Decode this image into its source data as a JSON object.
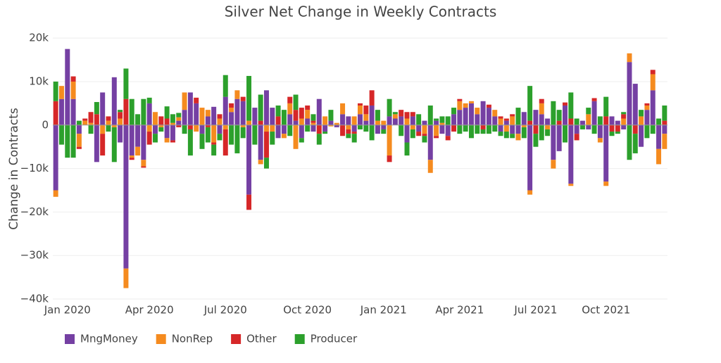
{
  "chart_data": {
    "type": "bar",
    "barmode": "relative",
    "title": "Silver Net Change in Weekly Contracts",
    "y_label": "Change in Contracts",
    "categories": [
      null,
      null,
      "Jan 2020",
      null,
      null,
      null,
      null,
      null,
      null,
      null,
      null,
      null,
      null,
      null,
      null,
      null,
      "Apr 2020",
      null,
      null,
      null,
      null,
      null,
      null,
      null,
      null,
      null,
      null,
      null,
      null,
      "Jul 2020",
      null,
      null,
      null,
      null,
      null,
      null,
      null,
      null,
      null,
      null,
      null,
      null,
      null,
      "Oct 2020",
      null,
      null,
      null,
      null,
      null,
      null,
      null,
      null,
      null,
      null,
      null,
      null,
      "Jan 2021",
      null,
      null,
      null,
      null,
      null,
      null,
      null,
      null,
      null,
      null,
      null,
      null,
      "Apr 2021",
      null,
      null,
      null,
      null,
      null,
      null,
      null,
      null,
      null,
      null,
      null,
      null,
      "Jul 2021",
      null,
      null,
      null,
      null,
      null,
      null,
      null,
      null,
      null,
      null,
      null,
      "Oct 2021",
      null,
      null,
      null,
      null,
      null,
      null,
      null,
      null,
      null,
      null
    ],
    "series": [
      {
        "name": "MngMoney",
        "color": "#7540a3",
        "values": [
          -15000,
          6000,
          17500,
          6000,
          -2000,
          0,
          0,
          -8500,
          7500,
          0,
          11000,
          -4000,
          -33000,
          -7000,
          -5000,
          -8000,
          5000,
          -2000,
          0,
          -3000,
          -3500,
          1000,
          3500,
          7500,
          5000,
          -2000,
          2000,
          4200,
          -2000,
          6500,
          3000,
          6000,
          5500,
          -16000,
          4000,
          -8000,
          8000,
          4000,
          -3000,
          -2000,
          2500,
          1000,
          -3000,
          1500,
          -1500,
          6000,
          -1500,
          1000,
          -500,
          2500,
          2000,
          -1500,
          2500,
          1000,
          4500,
          -2000,
          -1000,
          2000,
          1500,
          2000,
          -4000,
          2000,
          -1500,
          1000,
          -8000,
          1000,
          -2000,
          -2500,
          2500,
          3500,
          4000,
          5000,
          2500,
          5500,
          4000,
          2000,
          -1500,
          1000,
          -2000,
          -2000,
          3000,
          -15000,
          3500,
          2500,
          1500,
          -8000,
          -6000,
          4500,
          -13500,
          -2000,
          1000,
          -1000,
          5500,
          -3000,
          -13000,
          2000,
          1000,
          -1000,
          14500,
          9500,
          -5000,
          3500,
          8000,
          -5500,
          -2000
        ]
      },
      {
        "name": "NonRep",
        "color": "#f58b1f",
        "values": [
          -1500,
          3000,
          0,
          4000,
          -3000,
          1000,
          500,
          0,
          -2000,
          1000,
          -500,
          1500,
          -4500,
          -500,
          -2000,
          -1500,
          -1500,
          3000,
          -500,
          -1000,
          500,
          800,
          4000,
          0,
          -1500,
          4000,
          1500,
          -4000,
          1500,
          -1000,
          1000,
          2000,
          -500,
          1000,
          0,
          -1000,
          -1500,
          -1500,
          0,
          -1000,
          2500,
          -5500,
          1500,
          2000,
          500,
          0,
          2000,
          -300,
          500,
          2500,
          -1000,
          2000,
          2000,
          1500,
          0,
          1000,
          1000,
          -7000,
          1000,
          0,
          1500,
          -1000,
          0,
          -2000,
          -3000,
          -2500,
          500,
          0,
          0,
          2000,
          1000,
          500,
          1500,
          0,
          0,
          1500,
          1500,
          -1500,
          2000,
          -1500,
          -500,
          -1000,
          0,
          2500,
          -1000,
          -2000,
          0,
          0,
          -500,
          0,
          0,
          2500,
          0,
          -1000,
          -1000,
          0,
          0,
          1500,
          2000,
          0,
          2000,
          1000,
          3700,
          -3500,
          -3500
        ]
      },
      {
        "name": "Other",
        "color": "#d62728",
        "values": [
          5500,
          0,
          0,
          1200,
          -500,
          500,
          2500,
          2500,
          -5000,
          1000,
          0,
          1500,
          6000,
          -500,
          0,
          -300,
          -3000,
          0,
          2000,
          1500,
          -500,
          -500,
          0,
          -1000,
          1300,
          0,
          -500,
          -500,
          1000,
          -6000,
          1000,
          0,
          1000,
          -3500,
          0,
          1000,
          -6000,
          0,
          2000,
          0,
          1500,
          2500,
          2500,
          1000,
          500,
          -2000,
          0,
          0,
          0,
          -2500,
          -1000,
          -500,
          500,
          2000,
          3500,
          0,
          0,
          -1500,
          0,
          1500,
          1500,
          1000,
          -1000,
          -500,
          0,
          -500,
          0,
          -1000,
          -1500,
          500,
          0,
          0,
          0,
          -1000,
          700,
          0,
          500,
          500,
          500,
          0,
          0,
          1000,
          -2000,
          1000,
          0,
          0,
          1000,
          700,
          1500,
          -1500,
          0,
          0,
          700,
          0,
          2000,
          -1500,
          -1500,
          1000,
          0,
          -2000,
          0,
          500,
          1000,
          0,
          1000
        ]
      },
      {
        "name": "Producer",
        "color": "#2ca02c",
        "values": [
          4500,
          -4500,
          -7500,
          -7500,
          1000,
          0,
          -2000,
          2800,
          0,
          -1500,
          -8000,
          500,
          7000,
          6000,
          2500,
          6000,
          1300,
          -2000,
          -1000,
          2800,
          2000,
          1000,
          -2000,
          -6000,
          0,
          -3500,
          -3500,
          -2500,
          -1500,
          5000,
          -4500,
          -6500,
          -2500,
          10300,
          -4500,
          6000,
          -2500,
          -3000,
          2500,
          3500,
          -2500,
          3500,
          -1000,
          -1500,
          1500,
          -2500,
          -500,
          2500,
          0,
          0,
          -1000,
          -2000,
          -1000,
          -1500,
          -3500,
          2500,
          -1000,
          4000,
          500,
          -2500,
          -3000,
          -2000,
          2500,
          -1500,
          4500,
          500,
          1500,
          2000,
          1500,
          -2000,
          -1500,
          -3000,
          -2000,
          -1000,
          -2000,
          -1500,
          -1000,
          -1500,
          -1000,
          4000,
          -2500,
          8000,
          -3000,
          -3500,
          -1500,
          5500,
          2500,
          -4000,
          6000,
          1500,
          -1000,
          1500,
          -2000,
          2000,
          4500,
          -1000,
          -500,
          500,
          -8000,
          -4500,
          1500,
          -3000,
          -2000,
          1500,
          3500
        ]
      }
    ],
    "ylim": [
      -40000,
      21000
    ],
    "yticks": [
      {
        "value": -40000,
        "label": "−40k"
      },
      {
        "value": -30000,
        "label": "−30k"
      },
      {
        "value": -20000,
        "label": "−20k"
      },
      {
        "value": -10000,
        "label": "−10k"
      },
      0,
      {
        "value": 10000,
        "label": "10k"
      },
      {
        "value": 20000,
        "label": "20k"
      }
    ],
    "grid": true,
    "legend": "bottom"
  }
}
